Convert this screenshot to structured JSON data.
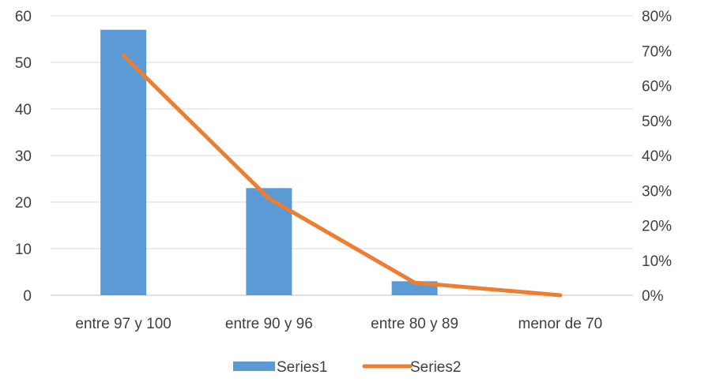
{
  "chart_data": {
    "type": "bar",
    "categories": [
      "entre 97 y 100",
      "entre 90 y 96",
      "entre 80 y 89",
      "menor de 70"
    ],
    "series": [
      {
        "name": "Series1",
        "type": "bar",
        "axis": "left",
        "color": "#5B9BD5",
        "values": [
          57,
          23,
          3,
          0
        ]
      },
      {
        "name": "Series2",
        "type": "line",
        "axis": "right",
        "color": "#ED7D31",
        "values": [
          0.687,
          0.277,
          0.036,
          0.0
        ]
      }
    ],
    "y_left": {
      "range": [
        0,
        60
      ],
      "ticks": [
        0,
        10,
        20,
        30,
        40,
        50,
        60
      ],
      "tick_labels": [
        "0",
        "10",
        "20",
        "30",
        "40",
        "50",
        "60"
      ]
    },
    "y_right": {
      "range": [
        0,
        0.8
      ],
      "ticks": [
        0,
        0.1,
        0.2,
        0.3,
        0.4,
        0.5,
        0.6,
        0.7,
        0.8
      ],
      "tick_labels": [
        "0%",
        "10%",
        "20%",
        "30%",
        "40%",
        "50%",
        "60%",
        "70%",
        "80%"
      ]
    },
    "grid": true,
    "legend_position": "bottom",
    "title": "",
    "xlabel": "",
    "ylabel": ""
  }
}
